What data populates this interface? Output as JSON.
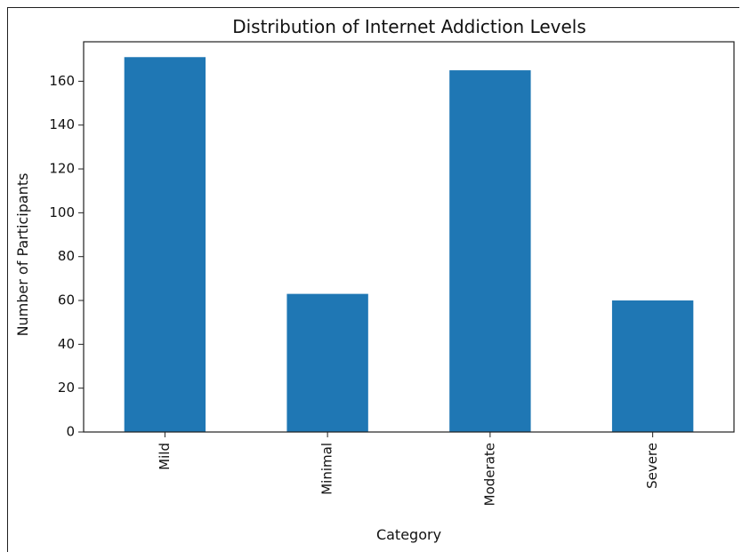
{
  "chart_data": {
    "type": "bar",
    "title": "Distribution of Internet Addiction Levels",
    "xlabel": "Category",
    "ylabel": "Number of Participants",
    "categories": [
      "Mild",
      "Minimal",
      "Moderate",
      "Severe"
    ],
    "values": [
      171,
      63,
      165,
      60
    ],
    "ylim": [
      0,
      178
    ],
    "yticks": [
      0,
      20,
      40,
      60,
      80,
      100,
      120,
      140,
      160
    ],
    "grid": false,
    "bar_color": "#1f77b4"
  }
}
